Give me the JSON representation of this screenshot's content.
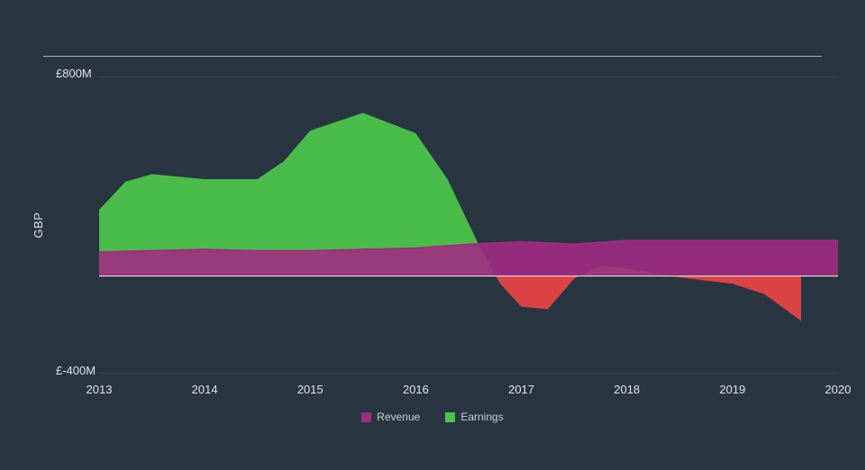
{
  "background_color": "#293642",
  "text_color": "#dfe3e7",
  "divider_color": "#b9c1c9",
  "chart": {
    "type": "area",
    "ylabel": "GBP",
    "ylim": [
      -400,
      800
    ],
    "ytick_top": "£800M",
    "ytick_bottom": "£-400M",
    "xlim": [
      2013,
      2020
    ],
    "xticks": [
      "2013",
      "2014",
      "2015",
      "2016",
      "2017",
      "2018",
      "2019",
      "2020"
    ],
    "zero_line_color": "#eceff2",
    "guide_line_color": "#3a4754",
    "guide_y_values": [
      780,
      -380
    ],
    "series": {
      "revenue": {
        "label": "Revenue",
        "color": "#a12b82",
        "stroke_opacity": 1.0,
        "fill_opacity": 0.9,
        "x": [
          2013.0,
          2013.5,
          2014.0,
          2014.5,
          2015.0,
          2015.5,
          2016.0,
          2016.5,
          2017.0,
          2017.5,
          2018.0,
          2018.5,
          2019.0,
          2019.5,
          2020.0
        ],
        "y": [
          95,
          100,
          105,
          100,
          100,
          105,
          110,
          125,
          135,
          125,
          140,
          140,
          140,
          140,
          140
        ]
      },
      "earnings": {
        "label": "Earnings",
        "color_positive": "#4bc44b",
        "color_negative": "#e64545",
        "fill_opacity": 0.95,
        "x": [
          2013.0,
          2013.25,
          2013.5,
          2014.0,
          2014.5,
          2014.75,
          2015.0,
          2015.5,
          2016.0,
          2016.3,
          2016.6,
          2016.8,
          2017.0,
          2017.25,
          2017.5,
          2017.75,
          2018.0,
          2018.5,
          2019.0,
          2019.3,
          2019.6,
          2019.65
        ],
        "y": [
          260,
          370,
          400,
          380,
          380,
          450,
          570,
          640,
          560,
          380,
          120,
          -30,
          -120,
          -130,
          -10,
          40,
          30,
          -5,
          -30,
          -70,
          -160,
          -175
        ]
      }
    },
    "legend": [
      {
        "label": "Revenue",
        "color": "#a12b82"
      },
      {
        "label": "Earnings",
        "color": "#4bc44b"
      }
    ],
    "label_fontsize": 13,
    "legend_fontsize": 12
  }
}
